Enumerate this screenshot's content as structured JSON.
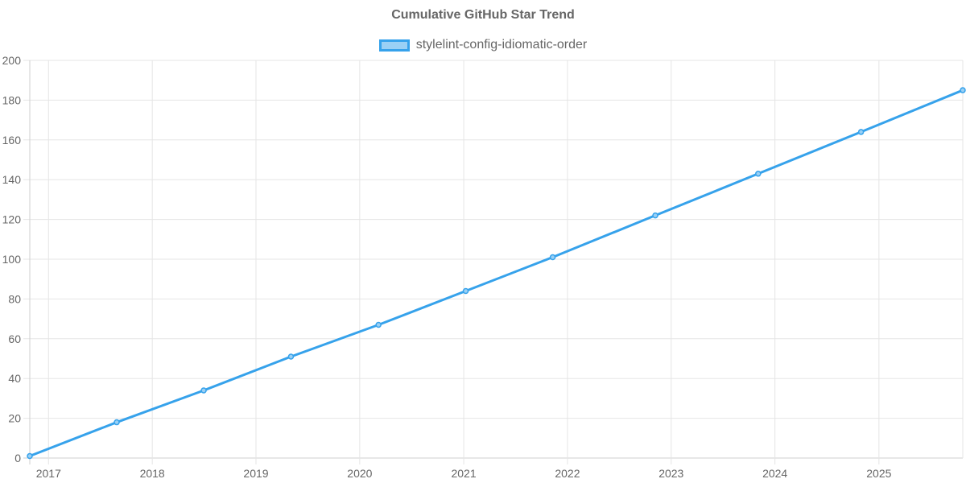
{
  "chart_data": {
    "type": "line",
    "title": "Cumulative GitHub Star Trend",
    "xlabel": "",
    "ylabel": "",
    "ylim": [
      0,
      200
    ],
    "yticks": [
      0,
      20,
      40,
      60,
      80,
      100,
      120,
      140,
      160,
      180,
      200
    ],
    "xticks": [
      "2017",
      "2018",
      "2019",
      "2020",
      "2021",
      "2022",
      "2023",
      "2024",
      "2025"
    ],
    "grid": true,
    "legend_position": "top",
    "series": [
      {
        "name": "stylelint-config-idiomatic-order",
        "color": "#36a2eb",
        "fill": "#9ad0f5",
        "x": [
          "2016-10-27",
          "2017-08-29",
          "2018-07-01",
          "2019-05-04",
          "2020-03-07",
          "2021-01-08",
          "2021-11-10",
          "2022-11-06",
          "2023-11-03",
          "2024-10-30",
          "2025-10-23"
        ],
        "values": [
          1,
          18,
          34,
          51,
          67,
          84,
          101,
          122,
          143,
          164,
          185
        ]
      }
    ]
  }
}
